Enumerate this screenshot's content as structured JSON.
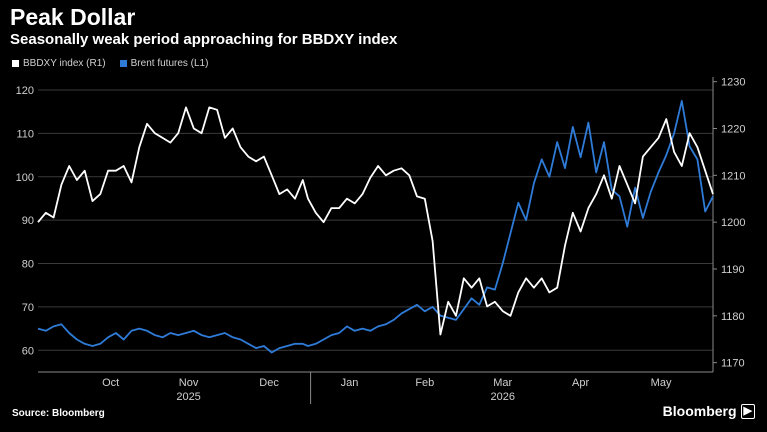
{
  "title": "Peak Dollar",
  "subtitle": "Seasonally weak period approaching for BBDXY index",
  "source": "Source: Bloomberg",
  "brand": "Bloomberg",
  "chart_data": {
    "type": "line",
    "grid": true,
    "legend_placement": "top-left",
    "left_axis": {
      "ylim": [
        55,
        123
      ],
      "ticks": [
        "60",
        "70",
        "80",
        "90",
        "100",
        "110",
        "120"
      ]
    },
    "right_axis": {
      "ylim": [
        1168,
        1231
      ],
      "ticks": [
        "1170",
        "1180",
        "1190",
        "1200",
        "1210",
        "1220",
        "1230"
      ]
    },
    "x_range": [
      "2025-09-18",
      "2026-06-05"
    ],
    "month_labels": [
      {
        "label": "Oct",
        "date": "2025-10-16"
      },
      {
        "label": "Nov",
        "date": "2025-11-15"
      },
      {
        "label": "Dec",
        "date": "2025-12-16"
      },
      {
        "label": "Jan",
        "date": "2026-01-16"
      },
      {
        "label": "Feb",
        "date": "2026-02-14"
      },
      {
        "label": "Mar",
        "date": "2026-03-16"
      },
      {
        "label": "Apr",
        "date": "2026-04-15"
      },
      {
        "label": "May",
        "date": "2026-05-16"
      }
    ],
    "year_labels": [
      {
        "label": "2025",
        "date": "2025-11-15"
      },
      {
        "label": "2026",
        "date": "2026-03-16"
      }
    ],
    "year_separator_date": "2026-01-01",
    "series": [
      {
        "name": "BBDXY index (R1)",
        "axis": "right",
        "color": "#ffffff",
        "points": [
          [
            "2025-09-18",
            1200.0
          ],
          [
            "2025-09-21",
            1202.0
          ],
          [
            "2025-09-24",
            1201.0
          ],
          [
            "2025-09-27",
            1208.0
          ],
          [
            "2025-09-30",
            1212.0
          ],
          [
            "2025-10-03",
            1209.0
          ],
          [
            "2025-10-06",
            1211.0
          ],
          [
            "2025-10-09",
            1204.5
          ],
          [
            "2025-10-12",
            1206.0
          ],
          [
            "2025-10-15",
            1211.0
          ],
          [
            "2025-10-18",
            1211.0
          ],
          [
            "2025-10-21",
            1212.0
          ],
          [
            "2025-10-24",
            1208.5
          ],
          [
            "2025-10-27",
            1216.0
          ],
          [
            "2025-10-30",
            1221.0
          ],
          [
            "2025-11-02",
            1219.0
          ],
          [
            "2025-11-05",
            1218.0
          ],
          [
            "2025-11-08",
            1217.0
          ],
          [
            "2025-11-11",
            1219.0
          ],
          [
            "2025-11-14",
            1224.5
          ],
          [
            "2025-11-17",
            1220.0
          ],
          [
            "2025-11-20",
            1219.0
          ],
          [
            "2025-11-23",
            1224.5
          ],
          [
            "2025-11-26",
            1224.0
          ],
          [
            "2025-11-29",
            1218.0
          ],
          [
            "2025-12-02",
            1220.0
          ],
          [
            "2025-12-05",
            1216.0
          ],
          [
            "2025-12-08",
            1214.0
          ],
          [
            "2025-12-11",
            1213.0
          ],
          [
            "2025-12-14",
            1214.0
          ],
          [
            "2025-12-17",
            1210.0
          ],
          [
            "2025-12-20",
            1206.0
          ],
          [
            "2025-12-23",
            1207.0
          ],
          [
            "2025-12-26",
            1205.0
          ],
          [
            "2025-12-29",
            1209.0
          ],
          [
            "2025-12-31",
            1205.0
          ],
          [
            "2026-01-03",
            1202.0
          ],
          [
            "2026-01-06",
            1200.0
          ],
          [
            "2026-01-09",
            1203.0
          ],
          [
            "2026-01-12",
            1203.0
          ],
          [
            "2026-01-15",
            1205.0
          ],
          [
            "2026-01-18",
            1204.0
          ],
          [
            "2026-01-21",
            1206.0
          ],
          [
            "2026-01-24",
            1209.5
          ],
          [
            "2026-01-27",
            1212.0
          ],
          [
            "2026-01-30",
            1210.0
          ],
          [
            "2026-02-02",
            1211.0
          ],
          [
            "2026-02-05",
            1211.5
          ],
          [
            "2026-02-08",
            1210.0
          ],
          [
            "2026-02-11",
            1205.5
          ],
          [
            "2026-02-14",
            1205.0
          ],
          [
            "2026-02-17",
            1196.0
          ],
          [
            "2026-02-20",
            1176.0
          ],
          [
            "2026-02-23",
            1183.0
          ],
          [
            "2026-02-26",
            1180.0
          ],
          [
            "2026-03-01",
            1188.0
          ],
          [
            "2026-03-04",
            1186.0
          ],
          [
            "2026-03-07",
            1188.0
          ],
          [
            "2026-03-10",
            1182.0
          ],
          [
            "2026-03-13",
            1183.0
          ],
          [
            "2026-03-16",
            1181.0
          ],
          [
            "2026-03-19",
            1180.0
          ],
          [
            "2026-03-22",
            1185.0
          ],
          [
            "2026-03-25",
            1188.0
          ],
          [
            "2026-03-28",
            1186.0
          ],
          [
            "2026-03-31",
            1188.0
          ],
          [
            "2026-04-03",
            1185.0
          ],
          [
            "2026-04-06",
            1186.0
          ],
          [
            "2026-04-09",
            1195.0
          ],
          [
            "2026-04-12",
            1202.0
          ],
          [
            "2026-04-15",
            1198.0
          ],
          [
            "2026-04-18",
            1203.0
          ],
          [
            "2026-04-21",
            1206.0
          ],
          [
            "2026-04-24",
            1210.0
          ],
          [
            "2026-04-27",
            1205.0
          ],
          [
            "2026-04-30",
            1212.0
          ],
          [
            "2026-05-03",
            1208.0
          ],
          [
            "2026-05-06",
            1204.0
          ],
          [
            "2026-05-09",
            1214.0
          ],
          [
            "2026-05-12",
            1216.0
          ],
          [
            "2026-05-15",
            1218.0
          ],
          [
            "2026-05-18",
            1222.0
          ],
          [
            "2026-05-21",
            1215.0
          ],
          [
            "2026-05-24",
            1212.0
          ],
          [
            "2026-05-27",
            1219.0
          ],
          [
            "2026-05-30",
            1216.0
          ],
          [
            "2026-06-02",
            1211.0
          ],
          [
            "2026-06-05",
            1206.0
          ]
        ]
      },
      {
        "name": "Brent futures (L1)",
        "axis": "left",
        "color": "#2f7bd8",
        "points": [
          [
            "2025-09-18",
            65.0
          ],
          [
            "2025-09-21",
            64.5
          ],
          [
            "2025-09-24",
            65.5
          ],
          [
            "2025-09-27",
            66.0
          ],
          [
            "2025-09-30",
            64.0
          ],
          [
            "2025-10-03",
            62.5
          ],
          [
            "2025-10-06",
            61.5
          ],
          [
            "2025-10-09",
            61.0
          ],
          [
            "2025-10-12",
            61.5
          ],
          [
            "2025-10-15",
            63.0
          ],
          [
            "2025-10-18",
            64.0
          ],
          [
            "2025-10-21",
            62.5
          ],
          [
            "2025-10-24",
            64.5
          ],
          [
            "2025-10-27",
            65.0
          ],
          [
            "2025-10-30",
            64.5
          ],
          [
            "2025-11-02",
            63.5
          ],
          [
            "2025-11-05",
            63.0
          ],
          [
            "2025-11-08",
            64.0
          ],
          [
            "2025-11-11",
            63.5
          ],
          [
            "2025-11-14",
            64.0
          ],
          [
            "2025-11-17",
            64.5
          ],
          [
            "2025-11-20",
            63.5
          ],
          [
            "2025-11-23",
            63.0
          ],
          [
            "2025-11-26",
            63.5
          ],
          [
            "2025-11-29",
            64.0
          ],
          [
            "2025-12-02",
            63.0
          ],
          [
            "2025-12-05",
            62.5
          ],
          [
            "2025-12-08",
            61.5
          ],
          [
            "2025-12-11",
            60.5
          ],
          [
            "2025-12-14",
            61.0
          ],
          [
            "2025-12-17",
            59.5
          ],
          [
            "2025-12-20",
            60.5
          ],
          [
            "2025-12-23",
            61.0
          ],
          [
            "2025-12-26",
            61.5
          ],
          [
            "2025-12-29",
            61.5
          ],
          [
            "2025-12-31",
            61.0
          ],
          [
            "2026-01-03",
            61.5
          ],
          [
            "2026-01-06",
            62.5
          ],
          [
            "2026-01-09",
            63.5
          ],
          [
            "2026-01-12",
            64.0
          ],
          [
            "2026-01-15",
            65.5
          ],
          [
            "2026-01-18",
            64.5
          ],
          [
            "2026-01-21",
            65.0
          ],
          [
            "2026-01-24",
            64.5
          ],
          [
            "2026-01-27",
            65.5
          ],
          [
            "2026-01-30",
            66.0
          ],
          [
            "2026-02-02",
            67.0
          ],
          [
            "2026-02-05",
            68.5
          ],
          [
            "2026-02-08",
            69.5
          ],
          [
            "2026-02-11",
            70.5
          ],
          [
            "2026-02-14",
            69.0
          ],
          [
            "2026-02-17",
            70.0
          ],
          [
            "2026-02-20",
            68.0
          ],
          [
            "2026-02-23",
            67.5
          ],
          [
            "2026-02-26",
            67.0
          ],
          [
            "2026-03-01",
            69.5
          ],
          [
            "2026-03-04",
            72.0
          ],
          [
            "2026-03-07",
            70.5
          ],
          [
            "2026-03-10",
            74.5
          ],
          [
            "2026-03-13",
            74.0
          ],
          [
            "2026-03-16",
            80.0
          ],
          [
            "2026-03-19",
            87.0
          ],
          [
            "2026-03-22",
            94.0
          ],
          [
            "2026-03-25",
            90.0
          ],
          [
            "2026-03-28",
            98.5
          ],
          [
            "2026-03-31",
            104.0
          ],
          [
            "2026-04-03",
            100.0
          ],
          [
            "2026-04-06",
            108.0
          ],
          [
            "2026-04-09",
            102.0
          ],
          [
            "2026-04-12",
            111.5
          ],
          [
            "2026-04-15",
            104.5
          ],
          [
            "2026-04-18",
            112.5
          ],
          [
            "2026-04-21",
            101.0
          ],
          [
            "2026-04-24",
            108.0
          ],
          [
            "2026-04-27",
            97.0
          ],
          [
            "2026-04-30",
            95.5
          ],
          [
            "2026-05-03",
            88.5
          ],
          [
            "2026-05-06",
            97.5
          ],
          [
            "2026-05-09",
            90.5
          ],
          [
            "2026-05-12",
            96.5
          ],
          [
            "2026-05-15",
            101.0
          ],
          [
            "2026-05-18",
            105.0
          ],
          [
            "2026-05-21",
            110.0
          ],
          [
            "2026-05-24",
            117.5
          ],
          [
            "2026-05-27",
            107.0
          ],
          [
            "2026-05-30",
            104.0
          ],
          [
            "2026-06-02",
            92.0
          ],
          [
            "2026-06-05",
            95.5
          ]
        ]
      }
    ]
  }
}
